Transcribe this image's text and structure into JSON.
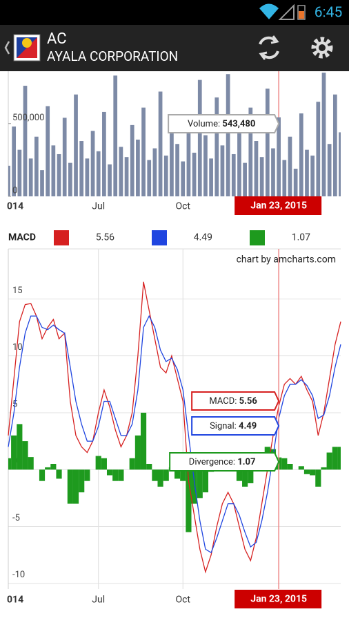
{
  "status_bar": {
    "time": "6:45"
  },
  "header": {
    "symbol": "AC",
    "company": "AYALA CORPORATION"
  },
  "chart_data": [
    {
      "type": "bar",
      "categories": [
        "014",
        null,
        null,
        null,
        null,
        null,
        null,
        null,
        null,
        null,
        null,
        null,
        null,
        null,
        null,
        null,
        "Jul",
        null,
        null,
        null,
        null,
        null,
        null,
        null,
        null,
        null,
        null,
        null,
        null,
        null,
        null,
        "Oct",
        null,
        null,
        null,
        null,
        null,
        null,
        null,
        null,
        null,
        null,
        null,
        null,
        null,
        null,
        null,
        null,
        "Jan 23, 2015",
        null,
        null,
        null,
        null,
        null,
        null,
        null,
        null,
        null,
        null,
        null
      ],
      "values": [
        210000,
        480000,
        320000,
        760000,
        260000,
        410000,
        180000,
        620000,
        350000,
        290000,
        540000,
        230000,
        700000,
        380000,
        260000,
        450000,
        310000,
        580000,
        220000,
        830000,
        340000,
        270000,
        490000,
        390000,
        610000,
        250000,
        330000,
        720000,
        280000,
        460000,
        360000,
        240000,
        550000,
        300000,
        800000,
        420000,
        260000,
        680000,
        350000,
        840000,
        290000,
        520000,
        230000,
        610000,
        380000,
        270000,
        740000,
        330000,
        543480,
        250000,
        410000,
        190000,
        570000,
        320000,
        280000,
        650000,
        850000,
        360000,
        700000,
        440000
      ],
      "color": "#7d8aa6",
      "ylim": [
        0,
        860000
      ],
      "yticks": [
        0,
        {
          "value": 500000,
          "label": "500,000"
        }
      ],
      "tooltip": {
        "label": "Volume:",
        "value_label": "543,480"
      }
    },
    {
      "type": "macd",
      "legend_title": "MACD",
      "watermark": "chart by amcharts.com",
      "categories": [
        "014",
        null,
        null,
        null,
        null,
        null,
        null,
        null,
        null,
        null,
        null,
        null,
        null,
        null,
        null,
        null,
        "Jul",
        null,
        null,
        null,
        null,
        null,
        null,
        null,
        null,
        null,
        null,
        null,
        null,
        null,
        null,
        "Oct",
        null,
        null,
        null,
        null,
        null,
        null,
        null,
        null,
        null,
        null,
        null,
        null,
        null,
        null,
        null,
        null,
        "Jan 23, 2015",
        null,
        null,
        null,
        null,
        null,
        null,
        null,
        null,
        null,
        null,
        null
      ],
      "series": [
        {
          "color": "#d62020",
          "legend_value": "5.56",
          "tooltip": "MACD:",
          "values": [
            3,
            8,
            13,
            14.5,
            14.6,
            13.5,
            11.5,
            12.5,
            13.2,
            11.5,
            12,
            6,
            3,
            2,
            1.5,
            2.5,
            5,
            7,
            5.5,
            3.5,
            2,
            3,
            5,
            10,
            16.5,
            14,
            11.5,
            9,
            8.5,
            10,
            8,
            6,
            -1,
            -4,
            -7,
            -9,
            -7.5,
            -5,
            -3,
            -2,
            -3,
            -5,
            -7,
            -8,
            -6,
            -3,
            0,
            3,
            5.56,
            7.5,
            8,
            7.5,
            8.2,
            7,
            6,
            3,
            5,
            8,
            11,
            13
          ]
        },
        {
          "color": "#1f45e0",
          "legend_value": "4.49",
          "tooltip": "Signal:",
          "values": [
            2,
            5,
            9,
            12,
            13.5,
            13.5,
            12.5,
            12.3,
            12.7,
            12.3,
            12,
            9,
            6,
            4,
            2.5,
            2.5,
            3.8,
            6,
            6,
            4.5,
            3,
            3,
            4,
            7,
            12.5,
            13.5,
            12.5,
            10.5,
            9.5,
            9.8,
            8.8,
            7,
            3,
            -1,
            -4.5,
            -7,
            -7.3,
            -6,
            -4.5,
            -3,
            -3,
            -4,
            -5.5,
            -6.8,
            -6.4,
            -4.5,
            -2,
            1.2,
            4.49,
            6.5,
            7.5,
            7.5,
            7.9,
            7.4,
            6.5,
            4.5,
            4.8,
            6.5,
            9,
            11
          ]
        },
        {
          "color": "#1e9a1e",
          "legend_value": "1.07",
          "tooltip": "Divergence:",
          "values": [
            1,
            3,
            4,
            2.5,
            1.1,
            0,
            -1,
            0.2,
            0.5,
            -0.8,
            0,
            -3,
            -3,
            -2,
            -1,
            0,
            1.2,
            1,
            -0.5,
            -1,
            -1,
            0,
            1,
            3,
            5,
            0.5,
            -1,
            -1.5,
            -1,
            0.2,
            -0.8,
            -1,
            -5.5,
            -3,
            -2.5,
            -2,
            -0.2,
            1,
            1.5,
            1,
            0,
            -1,
            -1.5,
            -1.2,
            0.4,
            1.5,
            2,
            1.8,
            1.07,
            1,
            0.5,
            0,
            0.3,
            -0.4,
            -0.5,
            -1.5,
            0.2,
            1.5,
            2,
            2
          ]
        }
      ],
      "ylim": [
        -10.5,
        19.4
      ],
      "yticks": [
        -10,
        -5,
        0,
        5,
        10,
        15
      ],
      "grid": true
    }
  ]
}
